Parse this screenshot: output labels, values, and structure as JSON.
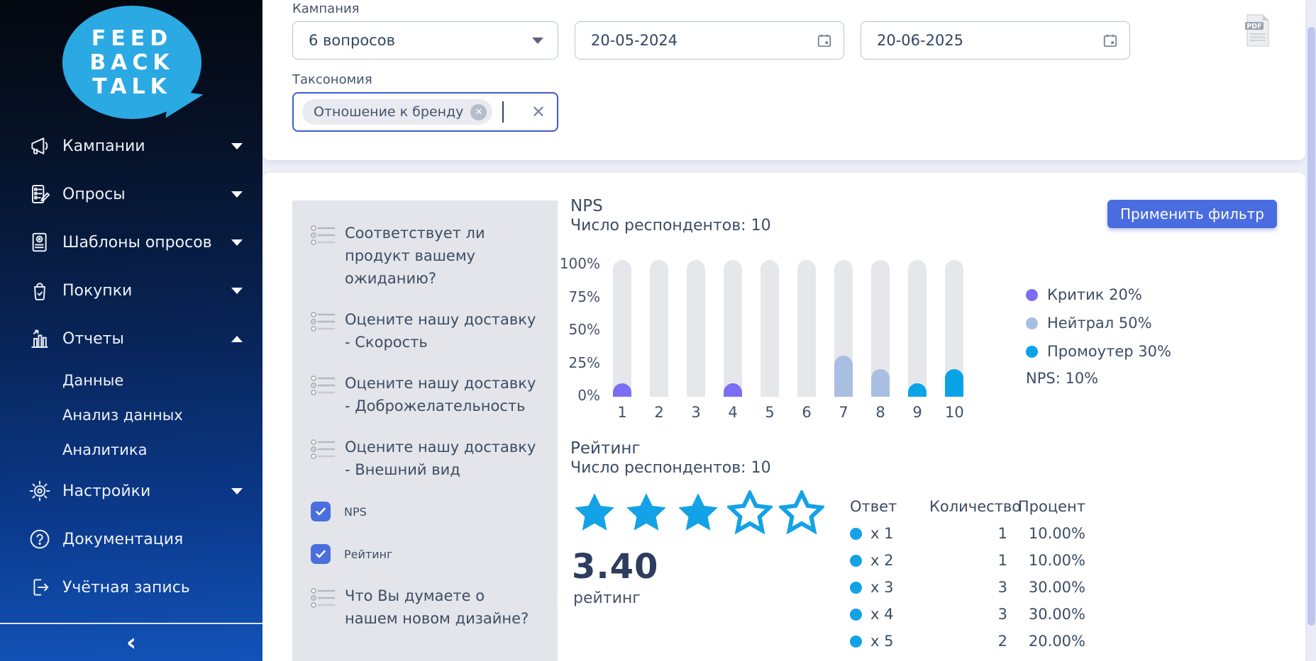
{
  "app": {
    "bg": "#edeff8",
    "accent": "#4a6ce1"
  },
  "sidebar": {
    "logo_lines": [
      "FEED",
      "BACK",
      "TALK"
    ],
    "logo_color": "#2ba9e3",
    "items": [
      {
        "label": "Кампании",
        "chevron": "down"
      },
      {
        "label": "Опросы",
        "chevron": "down"
      },
      {
        "label": "Шаблоны опросов",
        "chevron": "down"
      },
      {
        "label": "Покупки",
        "chevron": "down"
      },
      {
        "label": "Отчеты",
        "chevron": "up"
      },
      {
        "label": "Данные",
        "child": true
      },
      {
        "label": "Анализ данных",
        "child": true
      },
      {
        "label": "Аналитика",
        "child": true
      },
      {
        "label": "Настройки",
        "chevron": "down"
      },
      {
        "label": "Документация"
      },
      {
        "label": "Учётная запись"
      }
    ],
    "collapse_glyph": "‹"
  },
  "filters": {
    "campaign_label": "Кампания",
    "campaign_value": "6 вопросов",
    "date_from": "20-05-2024",
    "date_to": "20-06-2025",
    "taxonomy_label": "Таксономия",
    "taxonomy_chip": "Отношение к бренду",
    "apply_button": "Применить фильтр",
    "pdf_icon_label": "PDF"
  },
  "questions": [
    {
      "label": "Соответствует ли продукт вашему ожиданию?",
      "checked": false
    },
    {
      "label": "Оцените нашу доставку - Скорость",
      "checked": false
    },
    {
      "label": "Оцените нашу доставку - Доброжелательность",
      "checked": false
    },
    {
      "label": "Оцените нашу доставку - Внешний вид",
      "checked": false
    },
    {
      "label": "NPS",
      "checked": true
    },
    {
      "label": "Рейтинг",
      "checked": true
    },
    {
      "label": "Что Вы думаете о нашем новом дизайне?",
      "checked": false
    }
  ],
  "nps": {
    "title": "NPS",
    "respondents": "Число респондентов: 10",
    "score_label": "NPS: 10%",
    "legend": [
      {
        "label": "Критик",
        "value": "20%",
        "color": "#7b6ef2"
      },
      {
        "label": "Нейтрал",
        "value": "50%",
        "color": "#a9bfe2"
      },
      {
        "label": "Промоутер",
        "value": "30%",
        "color": "#0ba3e8"
      }
    ]
  },
  "chart_data": {
    "type": "bar",
    "title": "NPS",
    "subtitle": "Число респондентов: 10",
    "categories": [
      "1",
      "2",
      "3",
      "4",
      "5",
      "6",
      "7",
      "8",
      "9",
      "10"
    ],
    "values": [
      10,
      0,
      0,
      10,
      0,
      0,
      30,
      20,
      10,
      20
    ],
    "unit": "%",
    "ylim": [
      0,
      100
    ],
    "yticks": [
      "100%",
      "75%",
      "50%",
      "25%",
      "0%"
    ],
    "bar_colors": [
      "#7b6ef2",
      "#7b6ef2",
      "#7b6ef2",
      "#7b6ef2",
      "#7b6ef2",
      "#7b6ef2",
      "#a9bfe2",
      "#a9bfe2",
      "#0ba3e8",
      "#0ba3e8"
    ],
    "legend": [
      {
        "label": "Критик",
        "value": 20,
        "color": "#7b6ef2"
      },
      {
        "label": "Нейтрал",
        "value": 50,
        "color": "#a9bfe2"
      },
      {
        "label": "Промоутер",
        "value": 30,
        "color": "#0ba3e8"
      }
    ],
    "nps_score": "10%",
    "track_color": "#e6e7ea",
    "grid": false,
    "legend_position": "right"
  },
  "rating": {
    "title": "Рейтинг",
    "respondents": "Число респондентов: 10",
    "score": "3.40",
    "score_label": "рейтинг",
    "stars_filled": 3,
    "stars_total": 5,
    "star_color": "#14a2e6",
    "table": {
      "headers": [
        "Ответ",
        "Количество",
        "Процент"
      ],
      "rows": [
        {
          "answer": "x 1",
          "count": "1",
          "percent": "10.00%"
        },
        {
          "answer": "x 2",
          "count": "1",
          "percent": "10.00%"
        },
        {
          "answer": "x 3",
          "count": "3",
          "percent": "30.00%"
        },
        {
          "answer": "x 4",
          "count": "3",
          "percent": "30.00%"
        },
        {
          "answer": "x 5",
          "count": "2",
          "percent": "20.00%"
        }
      ]
    }
  }
}
